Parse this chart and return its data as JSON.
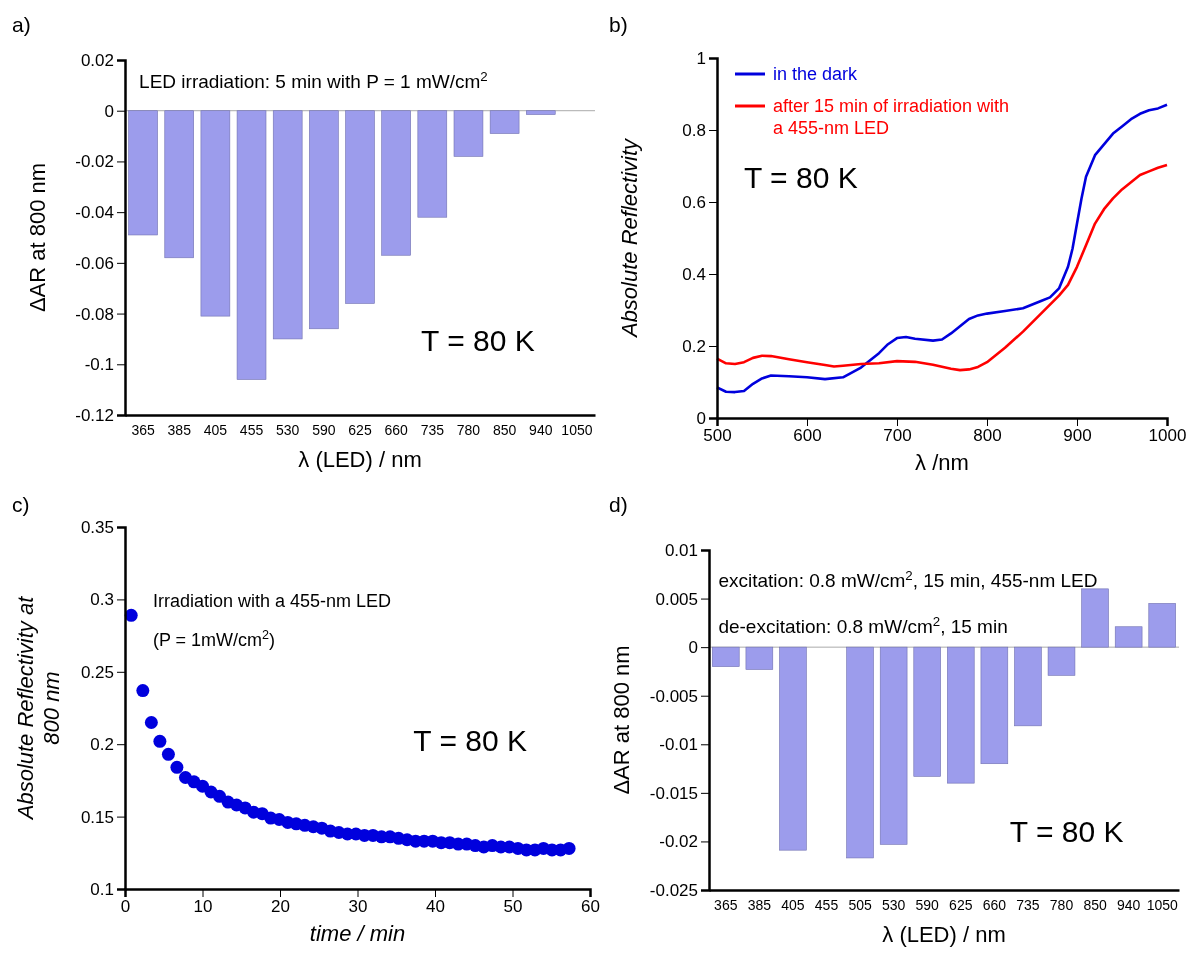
{
  "chart_data": [
    {
      "type": "bar",
      "title": "a)",
      "xlabel": "λ (LED) / nm",
      "ylabel": "ΔAR at 800 nm",
      "categories": [
        "365",
        "385",
        "405",
        "455",
        "530",
        "590",
        "625",
        "660",
        "735",
        "780",
        "850",
        "940",
        "1050"
      ],
      "values": [
        -0.049,
        -0.058,
        -0.081,
        -0.106,
        -0.09,
        -0.086,
        -0.076,
        -0.057,
        -0.042,
        -0.018,
        -0.009,
        -0.0015,
        0
      ],
      "color": "#9c9cec",
      "ylim": [
        -0.12,
        0.02
      ],
      "yticks": [
        0.02,
        0,
        -0.02,
        -0.04,
        -0.06,
        -0.08,
        -0.1,
        -0.12
      ],
      "annotations": [
        "LED irradiation: 5 min with P = 1 mW/cm$^{2}$",
        "T = 80 K"
      ]
    },
    {
      "type": "line",
      "title": "b)",
      "xlabel": "λ /nm",
      "ylabel": "Absolute Reflectivity",
      "xlim": [
        500,
        1000
      ],
      "xticks": [
        500,
        600,
        700,
        800,
        900,
        1000
      ],
      "ylim": [
        0,
        1
      ],
      "yticks": [
        0,
        0.2,
        0.4,
        0.6,
        0.8,
        1
      ],
      "legend": "top left",
      "series": [
        {
          "name": "in the dark",
          "color": "#0000dd",
          "x": [
            500,
            510,
            520,
            530,
            540,
            550,
            560,
            580,
            600,
            620,
            640,
            660,
            680,
            690,
            700,
            710,
            720,
            740,
            750,
            760,
            770,
            780,
            790,
            800,
            820,
            840,
            860,
            870,
            880,
            890,
            895,
            900,
            905,
            910,
            920,
            930,
            940,
            950,
            960,
            970,
            980,
            990,
            1000
          ],
          "values": [
            0.085,
            0.073,
            0.072,
            0.075,
            0.095,
            0.11,
            0.118,
            0.116,
            0.113,
            0.108,
            0.113,
            0.14,
            0.18,
            0.205,
            0.222,
            0.225,
            0.22,
            0.215,
            0.218,
            0.235,
            0.255,
            0.275,
            0.285,
            0.29,
            0.297,
            0.305,
            0.325,
            0.335,
            0.36,
            0.42,
            0.47,
            0.54,
            0.61,
            0.67,
            0.73,
            0.76,
            0.79,
            0.81,
            0.83,
            0.845,
            0.855,
            0.86,
            0.87
          ]
        },
        {
          "name": "after 15 min of irradiation with a 455-nm LED",
          "color": "#ff0000",
          "x": [
            500,
            510,
            520,
            530,
            540,
            550,
            560,
            580,
            600,
            620,
            630,
            640,
            660,
            680,
            700,
            720,
            740,
            760,
            770,
            780,
            790,
            800,
            820,
            840,
            860,
            880,
            890,
            900,
            910,
            920,
            930,
            940,
            950,
            960,
            970,
            980,
            990,
            1000
          ],
          "values": [
            0.165,
            0.152,
            0.15,
            0.155,
            0.167,
            0.173,
            0.172,
            0.163,
            0.155,
            0.147,
            0.143,
            0.145,
            0.15,
            0.152,
            0.158,
            0.156,
            0.148,
            0.137,
            0.133,
            0.135,
            0.142,
            0.155,
            0.195,
            0.24,
            0.29,
            0.34,
            0.37,
            0.42,
            0.48,
            0.54,
            0.58,
            0.61,
            0.635,
            0.655,
            0.675,
            0.685,
            0.695,
            0.703
          ]
        }
      ],
      "annotations": [
        "T = 80 K"
      ]
    },
    {
      "type": "scatter",
      "title": "c)",
      "xlabel": "time / min",
      "ylabel": "Absolute Reflectivity at 800 nm",
      "xlim": [
        0,
        60
      ],
      "xticks": [
        0,
        10,
        20,
        30,
        40,
        50,
        60
      ],
      "ylim": [
        0.1,
        0.35
      ],
      "yticks": [
        0.1,
        0.15,
        0.2,
        0.25,
        0.3,
        0.35
      ],
      "color": "#0000dd",
      "marker": "circle",
      "x": [
        0.8,
        2.3,
        3.4,
        4.5,
        5.6,
        6.7,
        7.8,
        8.9,
        10.0,
        11.1,
        12.2,
        13.3,
        14.4,
        15.5,
        16.6,
        17.7,
        18.8,
        19.9,
        21.0,
        22.1,
        23.2,
        24.3,
        25.4,
        26.5,
        27.6,
        28.7,
        29.8,
        30.9,
        32.0,
        33.1,
        34.2,
        35.3,
        36.4,
        37.5,
        38.6,
        39.7,
        40.8,
        41.9,
        43.0,
        44.1,
        45.2,
        46.3,
        47.4,
        48.5,
        49.6,
        50.7,
        51.8,
        52.9,
        54.0,
        55.1,
        56.2,
        57.3
      ],
      "values": [
        0.289,
        0.237,
        0.215,
        0.202,
        0.193,
        0.184,
        0.177,
        0.174,
        0.171,
        0.167,
        0.164,
        0.16,
        0.158,
        0.156,
        0.153,
        0.152,
        0.149,
        0.148,
        0.146,
        0.145,
        0.144,
        0.143,
        0.142,
        0.14,
        0.139,
        0.138,
        0.138,
        0.137,
        0.137,
        0.136,
        0.136,
        0.135,
        0.134,
        0.133,
        0.133,
        0.133,
        0.132,
        0.132,
        0.131,
        0.131,
        0.13,
        0.129,
        0.13,
        0.129,
        0.129,
        0.128,
        0.127,
        0.127,
        0.128,
        0.127,
        0.127,
        0.128
      ],
      "annotations": [
        "Irradiation with a 455-nm LED",
        "(P = 1mW/cm$^{2}$)",
        "T = 80 K"
      ]
    },
    {
      "type": "bar",
      "title": "d)",
      "xlabel": "λ (LED) / nm",
      "ylabel": "ΔAR at 800 nm",
      "categories": [
        "365",
        "385",
        "405",
        "455",
        "505",
        "530",
        "590",
        "625",
        "660",
        "735",
        "780",
        "850",
        "940",
        "1050"
      ],
      "values": [
        -0.002,
        -0.0023,
        -0.0209,
        null,
        -0.0217,
        -0.0203,
        -0.0133,
        -0.014,
        -0.012,
        -0.0081,
        -0.0029,
        0.006,
        0.0021,
        0.0045
      ],
      "color": "#9c9cec",
      "ylim": [
        -0.025,
        0.01
      ],
      "yticks": [
        0.01,
        0.005,
        0,
        -0.005,
        -0.01,
        -0.015,
        -0.02,
        -0.025
      ],
      "annotations": [
        "excitation: 0.8 mW/cm$^{2}$, 15 min, 455-nm LED",
        "de-excitation: 0.8 mW/cm$^{2}$, 15 min",
        "T = 80 K"
      ]
    }
  ]
}
